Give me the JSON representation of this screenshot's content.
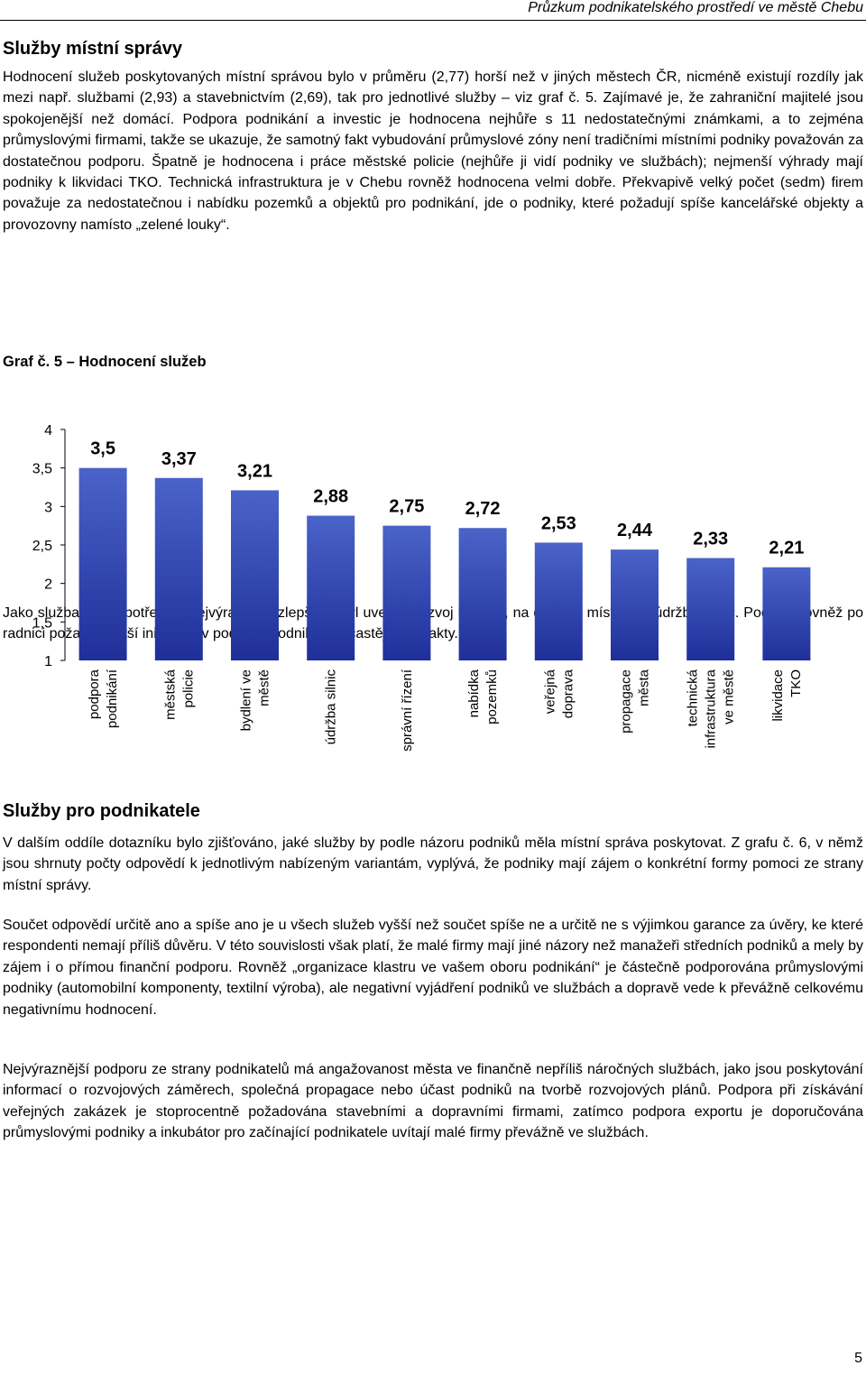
{
  "header": {
    "running_title": "Průzkum podnikatelského prostředí ve městě Chebu"
  },
  "section1": {
    "title": "Služby místní správy",
    "paragraphs": [
      "Hodnocení služeb poskytovaných místní správou bylo v průměru (2,77) horší než v jiných městech ČR, nicméně existují rozdíly jak mezi např. službami (2,93) a stavebnictvím (2,69), tak pro jednotlivé služby – viz graf č. 5. Zajímavé je, že zahraniční majitelé jsou spokojenější než domácí. Podpora podnikání a investic je hodnocena nejhůře s 11 nedostatečnými známkami, a to zejména průmyslovými firmami, takže se ukazuje, že samotný fakt vybudování průmyslové zóny není tradičními místními podniky považován za dostatečnou podporu. Špatně je hodnocena i práce městské policie (nejhůře ji vidí podniky ve službách); nejmenší výhrady mají podniky k likvidaci TKO. Technická infrastruktura je v Chebu rovněž hodnocena velmi dobře. Překvapivě velký počet (sedm) firem považuje za nedostatečnou i nabídku pozemků a objektů pro podnikání, jde o podniky, které požadují spíše kancelářské objekty a provozovny namísto „zelené louky“.",
      "Jako služba, která potřebuje nejvýraznější zlepšení, byl uveden rozvoj bydlení, na druhém místě pak údržba silnic. Podniky rovněž po radnici požadují větší iniciativu v podpoře podnikání a častější kontakty."
    ]
  },
  "graph": {
    "title": "Graf č. 5 – Hodnocení služeb"
  },
  "chart_data": {
    "type": "bar",
    "title": "",
    "xlabel": "",
    "ylabel": "",
    "ylim": [
      1,
      4
    ],
    "y_ticks": [
      "4",
      "3,5",
      "3",
      "2,5",
      "2",
      "1,5",
      "1"
    ],
    "y_tick_values": [
      4,
      3.5,
      3,
      2.5,
      2,
      1.5,
      1
    ],
    "grid": false,
    "legend": "none",
    "bar_color_top": "#4a63c9",
    "bar_color_bottom": "#1f2f9a",
    "categories": [
      [
        "podpora",
        "podnikání"
      ],
      [
        "městská",
        "policie"
      ],
      [
        "bydlení ve",
        "městě"
      ],
      [
        "údržba silnic"
      ],
      [
        "správní řízení"
      ],
      [
        "nabídka",
        "pozemků"
      ],
      [
        "veřejná",
        "doprava"
      ],
      [
        "propagace",
        "města"
      ],
      [
        "technická",
        "infrastruktura",
        "ve městě"
      ],
      [
        "likvidace",
        "TKO"
      ]
    ],
    "values": [
      3.5,
      3.37,
      3.21,
      2.88,
      2.75,
      2.72,
      2.53,
      2.44,
      2.33,
      2.21
    ],
    "value_labels": [
      "3,5",
      "3,37",
      "3,21",
      "2,88",
      "2,75",
      "2,72",
      "2,53",
      "2,44",
      "2,33",
      "2,21"
    ]
  },
  "section2": {
    "title": "Služby pro podnikatele",
    "paragraphs": [
      "V dalším oddíle dotazníku bylo zjišťováno, jaké služby by podle názoru podniků měla místní správa poskytovat. Z grafu č. 6, v němž jsou shrnuty počty odpovědí k jednotlivým nabízeným variantám, vyplývá, že podniky mají zájem o konkrétní formy pomoci ze strany místní správy.",
      "Součet odpovědí určitě ano a spíše ano je u všech služeb vyšší než součet spíše ne a určitě ne s výjimkou garance za úvěry, ke které respondenti nemají příliš důvěru. V této souvislosti však platí, že malé firmy mají jiné názory než manažeři středních podniků a mely by zájem i o přímou finanční podporu. Rovněž „organizace klastru ve vašem oboru podnikání“ je částečně podporována průmyslovými podniky (automobilní komponenty, textilní výroba), ale negativní vyjádření podniků ve službách a dopravě vede k převážně celkovému negativnímu hodnocení.",
      "Nejvýraznější podporu ze strany podnikatelů má angažovanost města ve  finančně nepříliš náročných službách, jako jsou poskytování informací o rozvojových záměrech, společná propagace nebo účast podniků na tvorbě rozvojových plánů. Podpora při získávání veřejných zakázek je stoprocentně požadována stavebními a dopravními firmami, zatímco podpora exportu je doporučována průmyslovými podniky a inkubátor pro začínající podnikatele uvítají malé firmy převážně ve službách."
    ]
  },
  "footer": {
    "page_number": "5"
  }
}
